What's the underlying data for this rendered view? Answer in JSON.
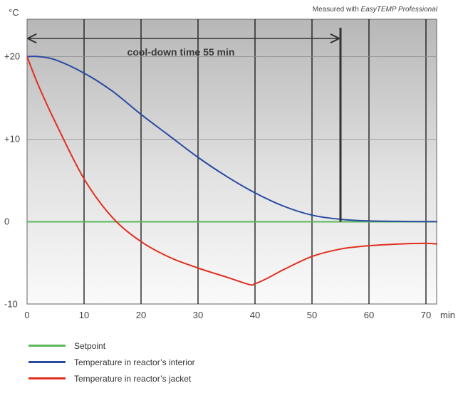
{
  "credit": {
    "prefix": "Measured with ",
    "product": "EasyTEMP Professional"
  },
  "chart_data": {
    "type": "line",
    "y_unit": "°C",
    "x_unit": "min",
    "xlim": [
      0,
      72
    ],
    "ylim": [
      -10,
      25
    ],
    "x_ticks": [
      0,
      10,
      20,
      30,
      40,
      50,
      60,
      70
    ],
    "x_tick_labels": [
      "0",
      "10",
      "20",
      "30",
      "40",
      "50",
      "60",
      "70"
    ],
    "y_ticks": [
      20,
      10,
      0,
      -10
    ],
    "y_tick_labels": [
      "+20",
      "+10",
      "0",
      "-10"
    ],
    "grid": "vertical lines at each x tick; horizontal lines at +20, +10, 0",
    "annotation": {
      "text": "cool-down time 55 min",
      "x_start": 0,
      "x_end": 55
    },
    "marker_line": {
      "x": 55,
      "y_from": 0,
      "y_to": 23.5
    },
    "series": [
      {
        "name": "Setpoint",
        "color": "#5cb85c",
        "x": [
          0,
          72
        ],
        "y": [
          0,
          0
        ]
      },
      {
        "name": "Temperature in reactor’s interior",
        "color": "#2a4aa0",
        "x": [
          0,
          2,
          5,
          10,
          15,
          20,
          25,
          30,
          35,
          40,
          45,
          50,
          55,
          60,
          65,
          70,
          72
        ],
        "y": [
          20,
          20,
          19.6,
          18,
          15.8,
          13,
          10.4,
          7.8,
          5.5,
          3.5,
          1.9,
          0.8,
          0.3,
          0.1,
          0.05,
          0.02,
          0.02
        ]
      },
      {
        "name": "Temperature in reactor’s jacket",
        "color": "#e03020",
        "x": [
          0,
          2,
          5,
          10,
          15,
          20,
          25,
          30,
          35,
          39,
          40,
          42,
          45,
          50,
          55,
          60,
          65,
          70,
          72
        ],
        "y": [
          20,
          16.5,
          12,
          5.2,
          0.5,
          -2.4,
          -4.3,
          -5.6,
          -6.7,
          -7.6,
          -7.5,
          -6.9,
          -5.8,
          -4.2,
          -3.3,
          -2.9,
          -2.7,
          -2.6,
          -2.7
        ]
      }
    ],
    "legend": {
      "placement": "bottom-left",
      "entries": [
        {
          "label": "Setpoint",
          "color": "#5cb85c"
        },
        {
          "label": "Temperature in reactor’s interior",
          "color": "#2a4aa0"
        },
        {
          "label": "Temperature in reactor’s jacket",
          "color": "#e03020"
        }
      ]
    }
  }
}
